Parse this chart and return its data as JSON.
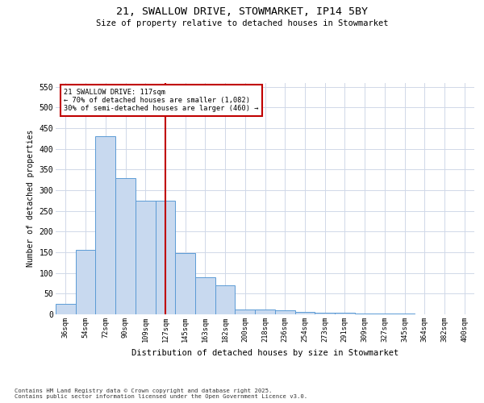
{
  "title_line1": "21, SWALLOW DRIVE, STOWMARKET, IP14 5BY",
  "title_line2": "Size of property relative to detached houses in Stowmarket",
  "xlabel": "Distribution of detached houses by size in Stowmarket",
  "ylabel": "Number of detached properties",
  "categories": [
    "36sqm",
    "54sqm",
    "72sqm",
    "90sqm",
    "109sqm",
    "127sqm",
    "145sqm",
    "163sqm",
    "182sqm",
    "200sqm",
    "218sqm",
    "236sqm",
    "254sqm",
    "273sqm",
    "291sqm",
    "309sqm",
    "327sqm",
    "345sqm",
    "364sqm",
    "382sqm",
    "400sqm"
  ],
  "values": [
    25,
    155,
    430,
    330,
    275,
    275,
    148,
    90,
    70,
    12,
    12,
    10,
    5,
    3,
    3,
    1,
    1,
    1,
    0,
    0,
    0
  ],
  "bar_color": "#c8d9ef",
  "bar_edge_color": "#5b9bd5",
  "vline_index": 5,
  "vline_color": "#c00000",
  "annotation_title": "21 SWALLOW DRIVE: 117sqm",
  "annotation_line2": "← 70% of detached houses are smaller (1,082)",
  "annotation_line3": "30% of semi-detached houses are larger (460) →",
  "annotation_box_color": "#c00000",
  "ylim": [
    0,
    560
  ],
  "yticks": [
    0,
    50,
    100,
    150,
    200,
    250,
    300,
    350,
    400,
    450,
    500,
    550
  ],
  "background_color": "#ffffff",
  "grid_color": "#d0d8e8",
  "footnote_line1": "Contains HM Land Registry data © Crown copyright and database right 2025.",
  "footnote_line2": "Contains public sector information licensed under the Open Government Licence v3.0."
}
